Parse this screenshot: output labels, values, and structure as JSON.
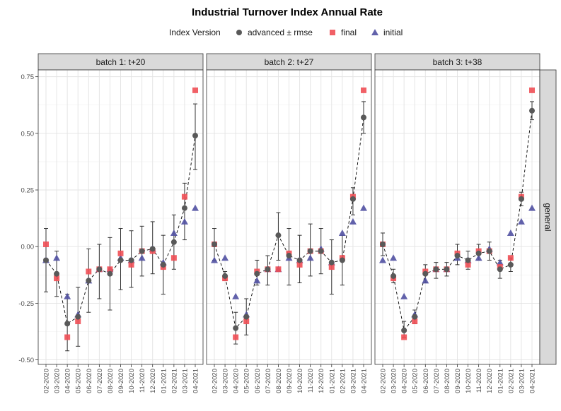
{
  "chart_data": {
    "type": "scatter",
    "title": "Industrial Turnover Index Annual Rate",
    "legend": {
      "title": "Index Version",
      "position": "top",
      "entries": [
        {
          "key": "advanced",
          "label": "advanced ± rmse",
          "color": "#595959",
          "shape": "circle"
        },
        {
          "key": "final",
          "label": "final",
          "color": "#ef4f55",
          "shape": "square"
        },
        {
          "key": "initial",
          "label": "initial",
          "color": "#5151a2",
          "shape": "triangle"
        }
      ]
    },
    "row_strip": "general",
    "ylim": [
      -0.52,
      0.78
    ],
    "y_ticks": [
      -0.5,
      -0.25,
      0.0,
      0.25,
      0.5,
      0.75
    ],
    "y_tick_labels": [
      "-0.50",
      "-0.25",
      "0.00",
      "0.25",
      "0.50",
      "0.75"
    ],
    "grid": true,
    "x": [
      "02-2020",
      "03-2020",
      "04-2020",
      "05-2020",
      "06-2020",
      "07-2020",
      "08-2020",
      "09-2020",
      "10-2020",
      "11-2020",
      "12-2020",
      "01-2021",
      "02-2021",
      "03-2021",
      "04-2021"
    ],
    "final": [
      0.01,
      -0.14,
      -0.4,
      -0.33,
      -0.11,
      -0.1,
      -0.1,
      -0.03,
      -0.08,
      -0.02,
      -0.02,
      -0.09,
      -0.05,
      0.22,
      0.69
    ],
    "initial": [
      -0.06,
      -0.05,
      -0.22,
      -0.3,
      -0.15,
      -0.1,
      -0.1,
      -0.05,
      -0.06,
      -0.05,
      -0.01,
      -0.07,
      0.06,
      0.11,
      0.17
    ],
    "panels": [
      {
        "strip": "batch 1: t+20",
        "advanced": [
          {
            "y": -0.06,
            "lo": -0.2,
            "hi": 0.08
          },
          {
            "y": -0.12,
            "lo": -0.22,
            "hi": -0.02
          },
          {
            "y": -0.34,
            "lo": -0.46,
            "hi": -0.21
          },
          {
            "y": -0.31,
            "lo": -0.44,
            "hi": -0.18
          },
          {
            "y": -0.15,
            "lo": -0.29,
            "hi": -0.01
          },
          {
            "y": -0.1,
            "lo": -0.23,
            "hi": 0.01
          },
          {
            "y": -0.12,
            "lo": -0.28,
            "hi": 0.04
          },
          {
            "y": -0.06,
            "lo": -0.19,
            "hi": 0.08
          },
          {
            "y": -0.06,
            "lo": -0.18,
            "hi": 0.07
          },
          {
            "y": -0.02,
            "lo": -0.13,
            "hi": 0.09
          },
          {
            "y": -0.01,
            "lo": -0.12,
            "hi": 0.11
          },
          {
            "y": -0.08,
            "lo": -0.21,
            "hi": 0.05
          },
          {
            "y": 0.02,
            "lo": -0.1,
            "hi": 0.14
          },
          {
            "y": 0.17,
            "lo": 0.03,
            "hi": 0.28
          },
          {
            "y": 0.49,
            "lo": 0.34,
            "hi": 0.63
          }
        ]
      },
      {
        "strip": "batch 2: t+27",
        "advanced": [
          {
            "y": 0.01,
            "lo": -0.06,
            "hi": 0.08
          },
          {
            "y": -0.13,
            "lo": -0.15,
            "hi": -0.11
          },
          {
            "y": -0.36,
            "lo": -0.43,
            "hi": -0.29
          },
          {
            "y": -0.31,
            "lo": -0.39,
            "hi": -0.23
          },
          {
            "y": -0.12,
            "lo": -0.17,
            "hi": -0.06
          },
          {
            "y": -0.1,
            "lo": -0.17,
            "hi": -0.04
          },
          {
            "y": 0.05,
            "lo": -0.06,
            "hi": 0.15
          },
          {
            "y": -0.04,
            "lo": -0.17,
            "hi": 0.08
          },
          {
            "y": -0.06,
            "lo": -0.16,
            "hi": 0.05
          },
          {
            "y": -0.02,
            "lo": -0.13,
            "hi": 0.1
          },
          {
            "y": -0.02,
            "lo": -0.12,
            "hi": 0.08
          },
          {
            "y": -0.07,
            "lo": -0.21,
            "hi": 0.03
          },
          {
            "y": -0.06,
            "lo": -0.17,
            "hi": 0.05
          },
          {
            "y": 0.21,
            "lo": 0.14,
            "hi": 0.26
          },
          {
            "y": 0.57,
            "lo": 0.5,
            "hi": 0.64
          }
        ]
      },
      {
        "strip": "batch 3: t+38",
        "advanced": [
          {
            "y": 0.01,
            "lo": -0.04,
            "hi": 0.06
          },
          {
            "y": -0.13,
            "lo": -0.16,
            "hi": -0.1
          },
          {
            "y": -0.37,
            "lo": -0.4,
            "hi": -0.33
          },
          {
            "y": -0.31,
            "lo": -0.34,
            "hi": -0.28
          },
          {
            "y": -0.12,
            "lo": -0.16,
            "hi": -0.08
          },
          {
            "y": -0.1,
            "lo": -0.14,
            "hi": -0.07
          },
          {
            "y": -0.1,
            "lo": -0.13,
            "hi": -0.07
          },
          {
            "y": -0.04,
            "lo": -0.08,
            "hi": 0.01
          },
          {
            "y": -0.06,
            "lo": -0.1,
            "hi": -0.02
          },
          {
            "y": -0.03,
            "lo": -0.06,
            "hi": 0.01
          },
          {
            "y": -0.02,
            "lo": -0.06,
            "hi": 0.02
          },
          {
            "y": -0.1,
            "lo": -0.14,
            "hi": -0.06
          },
          {
            "y": -0.08,
            "lo": -0.11,
            "hi": -0.05
          },
          {
            "y": 0.21,
            "lo": 0.18,
            "hi": 0.24
          },
          {
            "y": 0.6,
            "lo": 0.56,
            "hi": 0.64
          }
        ]
      }
    ]
  }
}
